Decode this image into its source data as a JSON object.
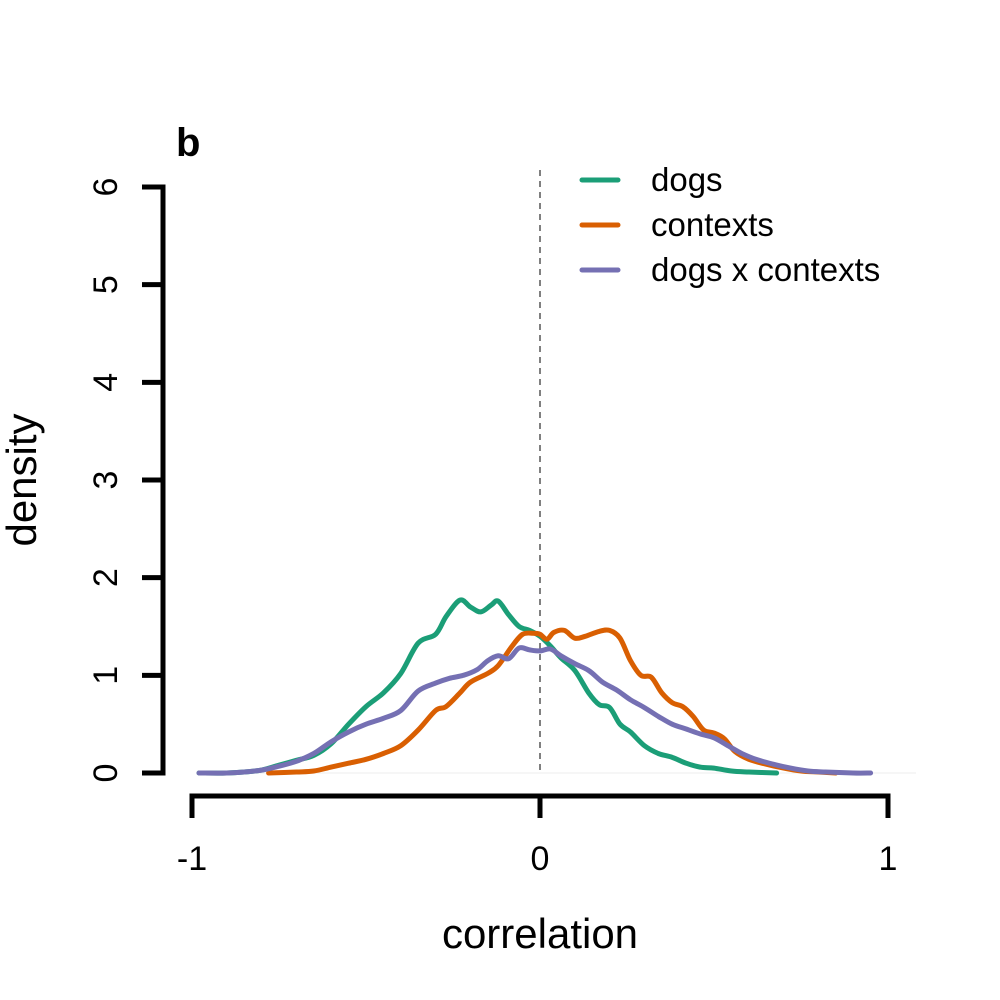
{
  "panel_label": "b",
  "colors": {
    "dogs": "#1b9e77",
    "contexts": "#d95f02",
    "dogs_x_contexts": "#7570b3",
    "reference_line": "#808080",
    "axis": "#000000"
  },
  "chart_data": {
    "type": "line",
    "xlabel": "correlation",
    "ylabel": "density",
    "xlim": [
      -1,
      1
    ],
    "ylim": [
      0,
      6
    ],
    "x_ticks": [
      -1,
      0,
      1
    ],
    "x_tick_labels": [
      "-1",
      "0",
      "1"
    ],
    "y_ticks": [
      0,
      1,
      2,
      3,
      4,
      5,
      6
    ],
    "y_tick_labels": [
      "0",
      "1",
      "2",
      "3",
      "4",
      "5",
      "6"
    ],
    "grid": false,
    "legend_position": "top-right",
    "reference_line": {
      "orientation": "vertical",
      "x": 0,
      "style": "dashed"
    },
    "series": [
      {
        "name": "dogs",
        "color": "#1b9e77",
        "points": [
          [
            -0.98,
            0.0
          ],
          [
            -0.9,
            0.0
          ],
          [
            -0.85,
            0.01
          ],
          [
            -0.8,
            0.03
          ],
          [
            -0.75,
            0.08
          ],
          [
            -0.7,
            0.13
          ],
          [
            -0.65,
            0.18
          ],
          [
            -0.6,
            0.3
          ],
          [
            -0.55,
            0.5
          ],
          [
            -0.5,
            0.68
          ],
          [
            -0.45,
            0.82
          ],
          [
            -0.4,
            1.02
          ],
          [
            -0.35,
            1.33
          ],
          [
            -0.3,
            1.42
          ],
          [
            -0.27,
            1.6
          ],
          [
            -0.23,
            1.77
          ],
          [
            -0.2,
            1.7
          ],
          [
            -0.17,
            1.65
          ],
          [
            -0.14,
            1.72
          ],
          [
            -0.12,
            1.76
          ],
          [
            -0.09,
            1.62
          ],
          [
            -0.06,
            1.5
          ],
          [
            -0.03,
            1.46
          ],
          [
            0.0,
            1.4
          ],
          [
            0.03,
            1.3
          ],
          [
            0.06,
            1.18
          ],
          [
            0.1,
            1.05
          ],
          [
            0.14,
            0.82
          ],
          [
            0.17,
            0.7
          ],
          [
            0.2,
            0.67
          ],
          [
            0.23,
            0.5
          ],
          [
            0.26,
            0.42
          ],
          [
            0.3,
            0.28
          ],
          [
            0.34,
            0.2
          ],
          [
            0.38,
            0.16
          ],
          [
            0.42,
            0.1
          ],
          [
            0.46,
            0.06
          ],
          [
            0.5,
            0.05
          ],
          [
            0.55,
            0.02
          ],
          [
            0.6,
            0.01
          ],
          [
            0.68,
            0.0
          ]
        ]
      },
      {
        "name": "contexts",
        "color": "#d95f02",
        "points": [
          [
            -0.78,
            0.0
          ],
          [
            -0.7,
            0.01
          ],
          [
            -0.65,
            0.02
          ],
          [
            -0.6,
            0.06
          ],
          [
            -0.55,
            0.1
          ],
          [
            -0.5,
            0.14
          ],
          [
            -0.45,
            0.2
          ],
          [
            -0.4,
            0.28
          ],
          [
            -0.35,
            0.44
          ],
          [
            -0.3,
            0.64
          ],
          [
            -0.27,
            0.68
          ],
          [
            -0.23,
            0.82
          ],
          [
            -0.2,
            0.93
          ],
          [
            -0.15,
            1.02
          ],
          [
            -0.12,
            1.1
          ],
          [
            -0.08,
            1.3
          ],
          [
            -0.05,
            1.42
          ],
          [
            -0.02,
            1.43
          ],
          [
            0.0,
            1.42
          ],
          [
            0.02,
            1.37
          ],
          [
            0.04,
            1.44
          ],
          [
            0.07,
            1.46
          ],
          [
            0.1,
            1.38
          ],
          [
            0.13,
            1.4
          ],
          [
            0.17,
            1.45
          ],
          [
            0.2,
            1.46
          ],
          [
            0.23,
            1.38
          ],
          [
            0.26,
            1.15
          ],
          [
            0.29,
            1.0
          ],
          [
            0.32,
            0.98
          ],
          [
            0.35,
            0.82
          ],
          [
            0.38,
            0.72
          ],
          [
            0.41,
            0.68
          ],
          [
            0.44,
            0.58
          ],
          [
            0.47,
            0.44
          ],
          [
            0.5,
            0.41
          ],
          [
            0.53,
            0.35
          ],
          [
            0.56,
            0.22
          ],
          [
            0.6,
            0.14
          ],
          [
            0.65,
            0.09
          ],
          [
            0.7,
            0.05
          ],
          [
            0.75,
            0.02
          ],
          [
            0.8,
            0.01
          ],
          [
            0.85,
            0.0
          ]
        ]
      },
      {
        "name": "dogs x contexts",
        "color": "#7570b3",
        "points": [
          [
            -0.98,
            0.0
          ],
          [
            -0.9,
            0.0
          ],
          [
            -0.85,
            0.01
          ],
          [
            -0.8,
            0.03
          ],
          [
            -0.75,
            0.07
          ],
          [
            -0.7,
            0.12
          ],
          [
            -0.65,
            0.2
          ],
          [
            -0.6,
            0.32
          ],
          [
            -0.55,
            0.42
          ],
          [
            -0.5,
            0.5
          ],
          [
            -0.45,
            0.56
          ],
          [
            -0.4,
            0.64
          ],
          [
            -0.35,
            0.84
          ],
          [
            -0.3,
            0.92
          ],
          [
            -0.26,
            0.97
          ],
          [
            -0.22,
            1.0
          ],
          [
            -0.18,
            1.06
          ],
          [
            -0.15,
            1.15
          ],
          [
            -0.12,
            1.2
          ],
          [
            -0.09,
            1.17
          ],
          [
            -0.06,
            1.28
          ],
          [
            -0.03,
            1.26
          ],
          [
            0.0,
            1.25
          ],
          [
            0.03,
            1.27
          ],
          [
            0.06,
            1.2
          ],
          [
            0.1,
            1.12
          ],
          [
            0.14,
            1.05
          ],
          [
            0.18,
            0.93
          ],
          [
            0.22,
            0.85
          ],
          [
            0.26,
            0.75
          ],
          [
            0.3,
            0.67
          ],
          [
            0.34,
            0.58
          ],
          [
            0.38,
            0.5
          ],
          [
            0.42,
            0.45
          ],
          [
            0.46,
            0.4
          ],
          [
            0.5,
            0.36
          ],
          [
            0.54,
            0.28
          ],
          [
            0.58,
            0.2
          ],
          [
            0.62,
            0.14
          ],
          [
            0.67,
            0.09
          ],
          [
            0.72,
            0.05
          ],
          [
            0.77,
            0.02
          ],
          [
            0.82,
            0.01
          ],
          [
            0.9,
            0.0
          ],
          [
            0.95,
            0.0
          ]
        ]
      }
    ]
  }
}
